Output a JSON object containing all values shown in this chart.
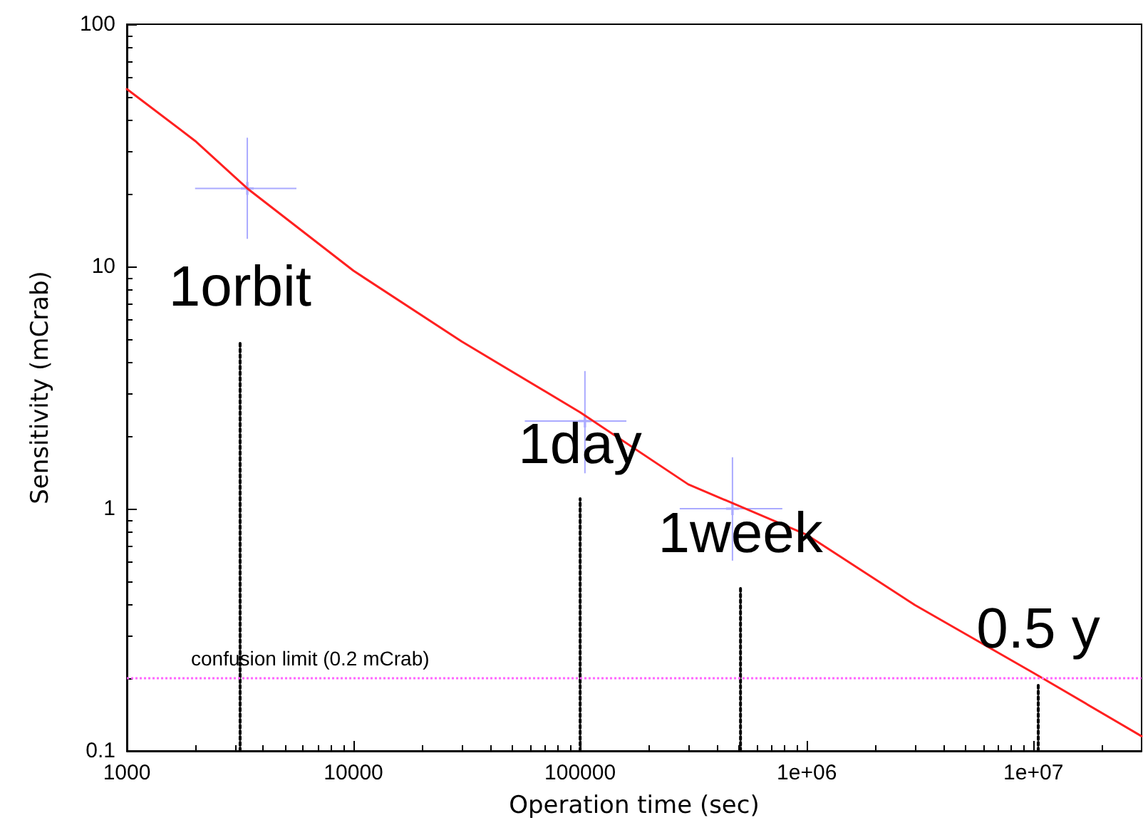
{
  "chart_data": {
    "type": "line",
    "xlabel": "Operation time (sec)",
    "ylabel": "Sensitivity (mCrab)",
    "log": "xy",
    "grid": false,
    "legend": false,
    "marker": "none",
    "xlim": [
      1000,
      30000000
    ],
    "ylim": [
      0.1,
      100
    ],
    "xticks": [
      1000,
      10000,
      100000,
      {
        "value": 1000000,
        "label": "1e+06"
      },
      {
        "value": 10000000,
        "label": "1e+07"
      }
    ],
    "yticks": [
      0.1,
      1,
      10,
      100
    ],
    "series": [
      {
        "color": "#ff2020",
        "line_style": "solid",
        "x": [
          1000,
          2000,
          3400,
          10000,
          30000,
          100000,
          300000,
          1000000,
          3000000,
          10000000,
          30000000
        ],
        "values": [
          54,
          33,
          21,
          9.6,
          4.9,
          2.5,
          1.26,
          0.78,
          0.4,
          0.21,
          0.115
        ]
      },
      {
        "type": "scatter",
        "color": "#aaaaff",
        "marker": "cross",
        "x": [
          3400,
          105000,
          470000
        ],
        "values": [
          21,
          2.3,
          1.0
        ],
        "errors": [
          [
            13,
            34
          ],
          [
            1.4,
            3.7
          ],
          [
            0.61,
            1.63
          ]
        ],
        "xerrors": [
          [
            2000,
            5600
          ],
          [
            57000,
            160000
          ],
          [
            275000,
            780000
          ]
        ]
      },
      {
        "name": "1orbit",
        "color": "#000000",
        "line_style": "dotted",
        "x": [
          3160,
          3160
        ],
        "values": [
          0.1,
          4.9
        ]
      },
      {
        "name": "1day",
        "color": "#000000",
        "line_style": "dotted",
        "x": [
          100000,
          100000
        ],
        "values": [
          0.1,
          1.1
        ]
      },
      {
        "name": "1week",
        "color": "#000000",
        "line_style": "dotted",
        "x": [
          510000,
          510000
        ],
        "values": [
          0.1,
          0.47
        ]
      },
      {
        "name": "0.5 y",
        "color": "#000000",
        "line_style": "dotted",
        "x": [
          10500000,
          10500000
        ],
        "values": [
          0.1,
          0.19
        ]
      }
    ],
    "ref_lines": [
      {
        "axis": "y",
        "value": 0.2,
        "label": "confusion limit (0.2 mCrab)",
        "color": "#ff66ff",
        "line_style": "dotted"
      }
    ]
  }
}
